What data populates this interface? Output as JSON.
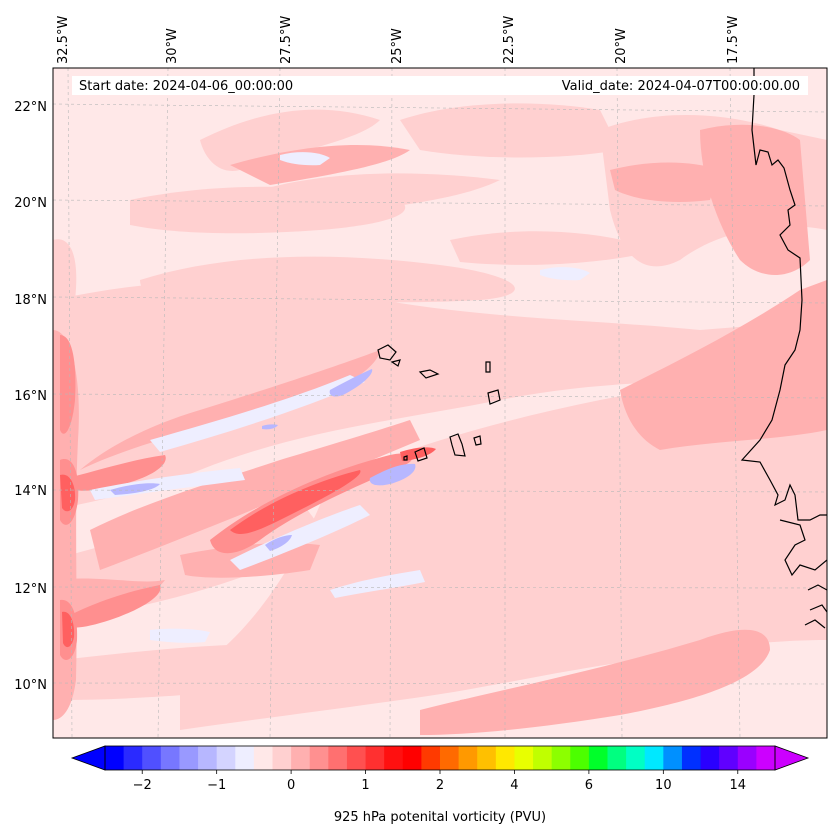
{
  "header": {
    "start_date": "Start date: 2024-04-06_00:00:00",
    "valid_date": "Valid_date: 2024-04-07T00:00:00.00"
  },
  "longitude_labels": [
    "32.5°W",
    "30°W",
    "27.5°W",
    "25°W",
    "22.5°W",
    "20°W",
    "17.5°W"
  ],
  "latitude_labels": [
    "22°N",
    "20°N",
    "18°N",
    "16°N",
    "14°N",
    "12°N",
    "10°N"
  ],
  "colorbar": {
    "title": "925 hPa potenital vorticity (PVU)",
    "tick_labels": [
      "−2",
      "−1",
      "0",
      "1",
      "2",
      "4",
      "6",
      "10",
      "14"
    ],
    "colors": [
      "#0000ff",
      "#2a2aff",
      "#5050ff",
      "#7777ff",
      "#9999ff",
      "#b7b7ff",
      "#d4d4ff",
      "#eeeeff",
      "#ffe8e8",
      "#ffd0d0",
      "#ffb0b0",
      "#ff9090",
      "#ff7070",
      "#ff5050",
      "#ff3030",
      "#ff1010",
      "#ff0000",
      "#ff3a00",
      "#ff6a00",
      "#ff9900",
      "#ffc000",
      "#ffe800",
      "#e8ff00",
      "#c0ff00",
      "#8cff00",
      "#4cff00",
      "#00ff2a",
      "#00ff80",
      "#00ffc4",
      "#00e8ff",
      "#0090ff",
      "#0030ff",
      "#2a00ff",
      "#6000ff",
      "#9a00ff",
      "#cc00ff"
    ]
  },
  "colors": {
    "background_field": "#ffe8e8",
    "light_pink": "#ffd0d0",
    "pink": "#ffb0b0",
    "red": "#ff7070",
    "light_blue": "#eeeeff",
    "blue": "#b7b7ff",
    "coast": "#000000"
  }
}
